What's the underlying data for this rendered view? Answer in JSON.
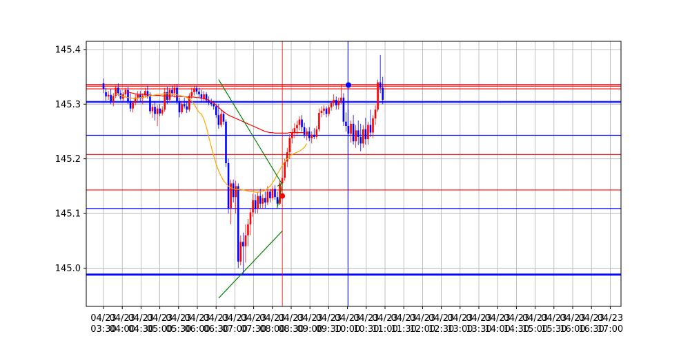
{
  "chart_data": {
    "type": "candlestick",
    "title": "",
    "xlabel": "",
    "ylabel": "",
    "ylim": [
      144.93,
      145.415
    ],
    "yticks": [
      145.0,
      145.1,
      145.2,
      145.3,
      145.4
    ],
    "ytick_labels": [
      "145.0",
      "145.1",
      "145.2",
      "145.3",
      "145.4"
    ],
    "grid": true,
    "xtick_labels": [
      {
        "date": "04/23",
        "time": "03:30"
      },
      {
        "date": "04/23",
        "time": "04:00"
      },
      {
        "date": "04/23",
        "time": "04:30"
      },
      {
        "date": "04/23",
        "time": "05:00"
      },
      {
        "date": "04/23",
        "time": "05:30"
      },
      {
        "date": "04/23",
        "time": "06:00"
      },
      {
        "date": "04/23",
        "time": "06:30"
      },
      {
        "date": "04/23",
        "time": "07:00"
      },
      {
        "date": "04/23",
        "time": "07:30"
      },
      {
        "date": "04/23",
        "time": "08:00"
      },
      {
        "date": "04/23",
        "time": "08:30"
      },
      {
        "date": "04/23",
        "time": "09:00"
      },
      {
        "date": "04/23",
        "time": "09:30"
      },
      {
        "date": "04/23",
        "time": "10:00"
      },
      {
        "date": "04/23",
        "time": "10:30"
      },
      {
        "date": "04/23",
        "time": "11:00"
      },
      {
        "date": "04/23",
        "time": "11:30"
      },
      {
        "date": "04/23",
        "time": "12:00"
      },
      {
        "date": "04/23",
        "time": "12:30"
      },
      {
        "date": "04/23",
        "time": "13:00"
      },
      {
        "date": "04/23",
        "time": "13:30"
      },
      {
        "date": "04/23",
        "time": "14:00"
      },
      {
        "date": "04/23",
        "time": "14:30"
      },
      {
        "date": "04/23",
        "time": "15:00"
      },
      {
        "date": "04/23",
        "time": "15:30"
      },
      {
        "date": "04/23",
        "time": "16:00"
      },
      {
        "date": "04/23",
        "time": "16:30"
      },
      {
        "date": "04/23",
        "time": "17:00"
      }
    ],
    "candles_ohlc": [
      [
        145.338,
        145.347,
        145.32,
        145.328
      ],
      [
        145.322,
        145.33,
        145.306,
        145.314
      ],
      [
        145.314,
        145.324,
        145.308,
        145.317
      ],
      [
        145.317,
        145.328,
        145.3,
        145.305
      ],
      [
        145.305,
        145.32,
        145.296,
        145.315
      ],
      [
        145.315,
        145.334,
        145.311,
        145.33
      ],
      [
        145.33,
        145.338,
        145.315,
        145.32
      ],
      [
        145.32,
        145.326,
        145.307,
        145.31
      ],
      [
        145.31,
        145.322,
        145.306,
        145.318
      ],
      [
        145.318,
        145.33,
        145.312,
        145.326
      ],
      [
        145.326,
        145.332,
        145.3,
        145.305
      ],
      [
        145.305,
        145.32,
        145.286,
        145.292
      ],
      [
        145.292,
        145.306,
        145.285,
        145.302
      ],
      [
        145.302,
        145.318,
        145.298,
        145.312
      ],
      [
        145.312,
        145.324,
        145.306,
        145.317
      ],
      [
        145.317,
        145.324,
        145.305,
        145.311
      ],
      [
        145.311,
        145.32,
        145.3,
        145.316
      ],
      [
        145.316,
        145.33,
        145.312,
        145.324
      ],
      [
        145.324,
        145.334,
        145.31,
        145.314
      ],
      [
        145.314,
        145.322,
        145.282,
        145.287
      ],
      [
        145.287,
        145.3,
        145.275,
        145.295
      ],
      [
        145.295,
        145.305,
        145.27,
        145.282
      ],
      [
        145.282,
        145.298,
        145.26,
        145.292
      ],
      [
        145.292,
        145.3,
        145.278,
        145.283
      ],
      [
        145.283,
        145.296,
        145.279,
        145.29
      ],
      [
        145.29,
        145.33,
        145.286,
        145.322
      ],
      [
        145.322,
        145.332,
        145.3,
        145.308
      ],
      [
        145.308,
        145.33,
        145.305,
        145.326
      ],
      [
        145.326,
        145.334,
        145.315,
        145.32
      ],
      [
        145.32,
        145.335,
        145.312,
        145.33
      ],
      [
        145.33,
        145.336,
        145.3,
        145.305
      ],
      [
        145.305,
        145.312,
        145.276,
        145.285
      ],
      [
        145.285,
        145.306,
        145.282,
        145.3
      ],
      [
        145.3,
        145.312,
        145.292,
        145.296
      ],
      [
        145.296,
        145.306,
        145.284,
        145.29
      ],
      [
        145.29,
        145.32,
        145.286,
        145.315
      ],
      [
        145.315,
        145.33,
        145.31,
        145.322
      ],
      [
        145.322,
        145.334,
        145.316,
        145.329
      ],
      [
        145.329,
        145.334,
        145.318,
        145.323
      ],
      [
        145.323,
        145.33,
        145.312,
        145.318
      ],
      [
        145.318,
        145.326,
        145.304,
        145.31
      ],
      [
        145.31,
        145.324,
        145.306,
        145.318
      ],
      [
        145.318,
        145.322,
        145.303,
        145.307
      ],
      [
        145.307,
        145.314,
        145.298,
        145.303
      ],
      [
        145.303,
        145.31,
        145.296,
        145.3
      ],
      [
        145.3,
        145.306,
        145.29,
        145.296
      ],
      [
        145.296,
        145.3,
        145.275,
        145.28
      ],
      [
        145.28,
        145.3,
        145.255,
        145.262
      ],
      [
        145.262,
        145.29,
        145.258,
        145.282
      ],
      [
        145.282,
        145.288,
        145.262,
        145.268
      ],
      [
        145.268,
        145.272,
        145.185,
        145.192
      ],
      [
        145.192,
        145.2,
        145.1,
        145.11
      ],
      [
        145.11,
        145.162,
        145.08,
        145.155
      ],
      [
        145.155,
        145.162,
        145.12,
        145.13
      ],
      [
        145.13,
        145.16,
        145.1,
        145.15
      ],
      [
        145.15,
        145.155,
        145.0,
        145.012
      ],
      [
        145.012,
        145.06,
        145.005,
        145.048
      ],
      [
        145.048,
        145.065,
        144.99,
        145.04
      ],
      [
        145.04,
        145.08,
        145.01,
        145.06
      ],
      [
        145.06,
        145.09,
        145.04,
        145.08
      ],
      [
        145.08,
        145.11,
        145.06,
        145.102
      ],
      [
        145.102,
        145.136,
        145.094,
        145.124
      ],
      [
        145.124,
        145.135,
        145.1,
        145.108
      ],
      [
        145.108,
        145.14,
        145.1,
        145.132
      ],
      [
        145.132,
        145.145,
        145.11,
        145.118
      ],
      [
        145.118,
        145.135,
        145.108,
        145.128
      ],
      [
        145.128,
        145.14,
        145.11,
        145.12
      ],
      [
        145.12,
        145.15,
        145.115,
        145.14
      ],
      [
        145.14,
        145.145,
        145.12,
        145.128
      ],
      [
        145.128,
        145.15,
        145.124,
        145.145
      ],
      [
        145.145,
        145.152,
        145.125,
        145.13
      ],
      [
        145.13,
        145.14,
        145.112,
        145.118
      ],
      [
        145.118,
        145.16,
        145.115,
        145.155
      ],
      [
        145.155,
        145.17,
        145.14,
        145.165
      ],
      [
        145.165,
        145.2,
        145.16,
        145.195
      ],
      [
        145.195,
        145.22,
        145.185,
        145.212
      ],
      [
        145.212,
        145.245,
        145.2,
        145.238
      ],
      [
        145.238,
        145.255,
        145.228,
        145.248
      ],
      [
        145.248,
        145.265,
        145.238,
        145.256
      ],
      [
        145.256,
        145.27,
        145.244,
        145.262
      ],
      [
        145.262,
        145.278,
        145.252,
        145.272
      ],
      [
        145.272,
        145.28,
        145.25,
        145.258
      ],
      [
        145.258,
        145.266,
        145.238,
        145.244
      ],
      [
        145.244,
        145.256,
        145.234,
        145.25
      ],
      [
        145.25,
        145.258,
        145.232,
        145.238
      ],
      [
        145.238,
        145.25,
        145.228,
        145.244
      ],
      [
        145.244,
        145.256,
        145.236,
        145.24
      ],
      [
        145.24,
        145.26,
        145.236,
        145.254
      ],
      [
        145.254,
        145.292,
        145.25,
        145.284
      ],
      [
        145.284,
        145.296,
        145.276,
        145.288
      ],
      [
        145.288,
        145.298,
        145.28,
        145.292
      ],
      [
        145.292,
        145.296,
        145.276,
        145.282
      ],
      [
        145.282,
        145.298,
        145.278,
        145.294
      ],
      [
        145.294,
        145.306,
        145.288,
        145.302
      ],
      [
        145.302,
        145.318,
        145.296,
        145.308
      ],
      [
        145.308,
        145.314,
        145.29,
        145.298
      ],
      [
        145.298,
        145.312,
        145.29,
        145.306
      ],
      [
        145.306,
        145.336,
        145.3,
        145.312
      ],
      [
        145.312,
        145.32,
        145.26,
        145.268
      ],
      [
        145.268,
        145.285,
        145.25,
        145.26
      ],
      [
        145.26,
        145.29,
        145.24,
        145.246
      ],
      [
        145.246,
        145.27,
        145.23,
        145.264
      ],
      [
        145.264,
        145.28,
        145.226,
        145.232
      ],
      [
        145.232,
        145.262,
        145.22,
        145.252
      ],
      [
        145.252,
        145.27,
        145.225,
        145.24
      ],
      [
        145.24,
        145.264,
        145.214,
        145.228
      ],
      [
        145.228,
        145.262,
        145.22,
        145.254
      ],
      [
        145.254,
        145.275,
        145.226,
        145.236
      ],
      [
        145.236,
        145.268,
        145.226,
        145.262
      ],
      [
        145.262,
        145.29,
        145.24,
        145.248
      ],
      [
        145.248,
        145.28,
        145.238,
        145.274
      ],
      [
        145.274,
        145.298,
        145.262,
        145.29
      ],
      [
        145.29,
        145.345,
        145.286,
        145.34
      ],
      [
        145.34,
        145.39,
        145.32,
        145.33
      ],
      [
        145.33,
        145.35,
        145.3,
        145.308
      ]
    ],
    "ma_orange_start_index": 5,
    "ma_orange": [
      145.318,
      145.317,
      145.316,
      145.314,
      145.313,
      145.312,
      145.311,
      145.311,
      145.311,
      145.311,
      145.312,
      145.313,
      145.313,
      145.314,
      145.315,
      145.316,
      145.317,
      145.318,
      145.318,
      145.318,
      145.319,
      145.319,
      145.319,
      145.318,
      145.318,
      145.317,
      145.316,
      145.315,
      145.314,
      145.312,
      145.31,
      145.306,
      145.3,
      145.292,
      145.285,
      145.282,
      145.272,
      145.258,
      145.24,
      145.222,
      145.205,
      145.19,
      145.178,
      145.168,
      145.16,
      145.155,
      145.15,
      145.147,
      145.145,
      145.144,
      145.144,
      145.144,
      145.143,
      145.142,
      145.141,
      145.14,
      145.14,
      145.139,
      145.139,
      145.14,
      145.141,
      145.142,
      145.146,
      145.15,
      145.156,
      145.163,
      145.172,
      145.18,
      145.188,
      145.195,
      145.2,
      145.205,
      145.208,
      145.21,
      145.212,
      145.214,
      145.217,
      145.221,
      145.228
    ],
    "ma_red_start_index": 10,
    "ma_red": [
      145.322,
      145.321,
      145.32,
      145.319,
      145.318,
      145.318,
      145.318,
      145.318,
      145.317,
      145.317,
      145.316,
      145.316,
      145.316,
      145.316,
      145.315,
      145.315,
      145.315,
      145.315,
      145.315,
      145.314,
      145.314,
      145.314,
      145.314,
      145.314,
      145.313,
      145.313,
      145.313,
      145.313,
      145.312,
      145.312,
      145.311,
      145.31,
      145.309,
      145.307,
      145.305,
      145.302,
      145.298,
      145.294,
      145.29,
      145.286,
      145.283,
      145.28,
      145.278,
      145.276,
      145.274,
      145.272,
      145.27,
      145.268,
      145.266,
      145.264,
      145.262,
      145.26,
      145.258,
      145.256,
      145.254,
      145.252,
      145.25,
      145.249,
      145.248,
      145.248,
      145.247,
      145.247,
      145.247,
      145.247,
      145.247,
      145.247,
      145.248,
      145.248,
      145.248,
      145.248,
      145.248,
      145.248,
      145.248
    ],
    "hlines": [
      {
        "y": 145.336,
        "color": "#ff0000",
        "width": 1.2
      },
      {
        "y": 145.333,
        "color": "#ff0000",
        "width": 1.2
      },
      {
        "y": 145.328,
        "color": "#ff0000",
        "width": 1.2
      },
      {
        "y": 145.305,
        "color": "#0000ff",
        "width": 1.2
      },
      {
        "y": 145.303,
        "color": "#0000ff",
        "width": 1.2
      },
      {
        "y": 145.243,
        "color": "#0000ff",
        "width": 1.2
      },
      {
        "y": 145.208,
        "color": "#ff0000",
        "width": 1.2
      },
      {
        "y": 145.143,
        "color": "#ff0000",
        "width": 1.2
      },
      {
        "y": 145.109,
        "color": "#0000ff",
        "width": 1.2
      },
      {
        "y": 144.989,
        "color": "#0000ff",
        "width": 1.6
      },
      {
        "y": 144.987,
        "color": "#0000ff",
        "width": 1.2
      }
    ],
    "vlines": [
      {
        "x_index": 73.0,
        "color": "#ff0000"
      },
      {
        "x_index": 100.0,
        "color": "#0000ff"
      }
    ],
    "trendlines": [
      {
        "from": [
          47.0,
          145.345
        ],
        "to": [
          73.0,
          145.153
        ],
        "color": "#008000"
      },
      {
        "from": [
          71.0,
          145.15
        ],
        "to": [
          73.0,
          145.155
        ],
        "color": "#008000"
      },
      {
        "from": [
          70.8,
          145.108
        ],
        "to": [
          73.0,
          145.152
        ],
        "color": "#008000"
      },
      {
        "from": [
          47.0,
          144.945
        ],
        "to": [
          73.0,
          145.068
        ],
        "color": "#008000"
      }
    ],
    "markers": [
      {
        "x_index": 73.0,
        "y": 145.132,
        "color": "#ff0000"
      },
      {
        "x_index": 100.0,
        "y": 145.335,
        "color": "#0000ff"
      }
    ],
    "colors": {
      "up": "#ff0000",
      "down": "#0000ff",
      "ma_short": "#ffa500",
      "ma_long": "#ff0000",
      "trend": "#008000",
      "grid": "#b0b0b0"
    }
  }
}
